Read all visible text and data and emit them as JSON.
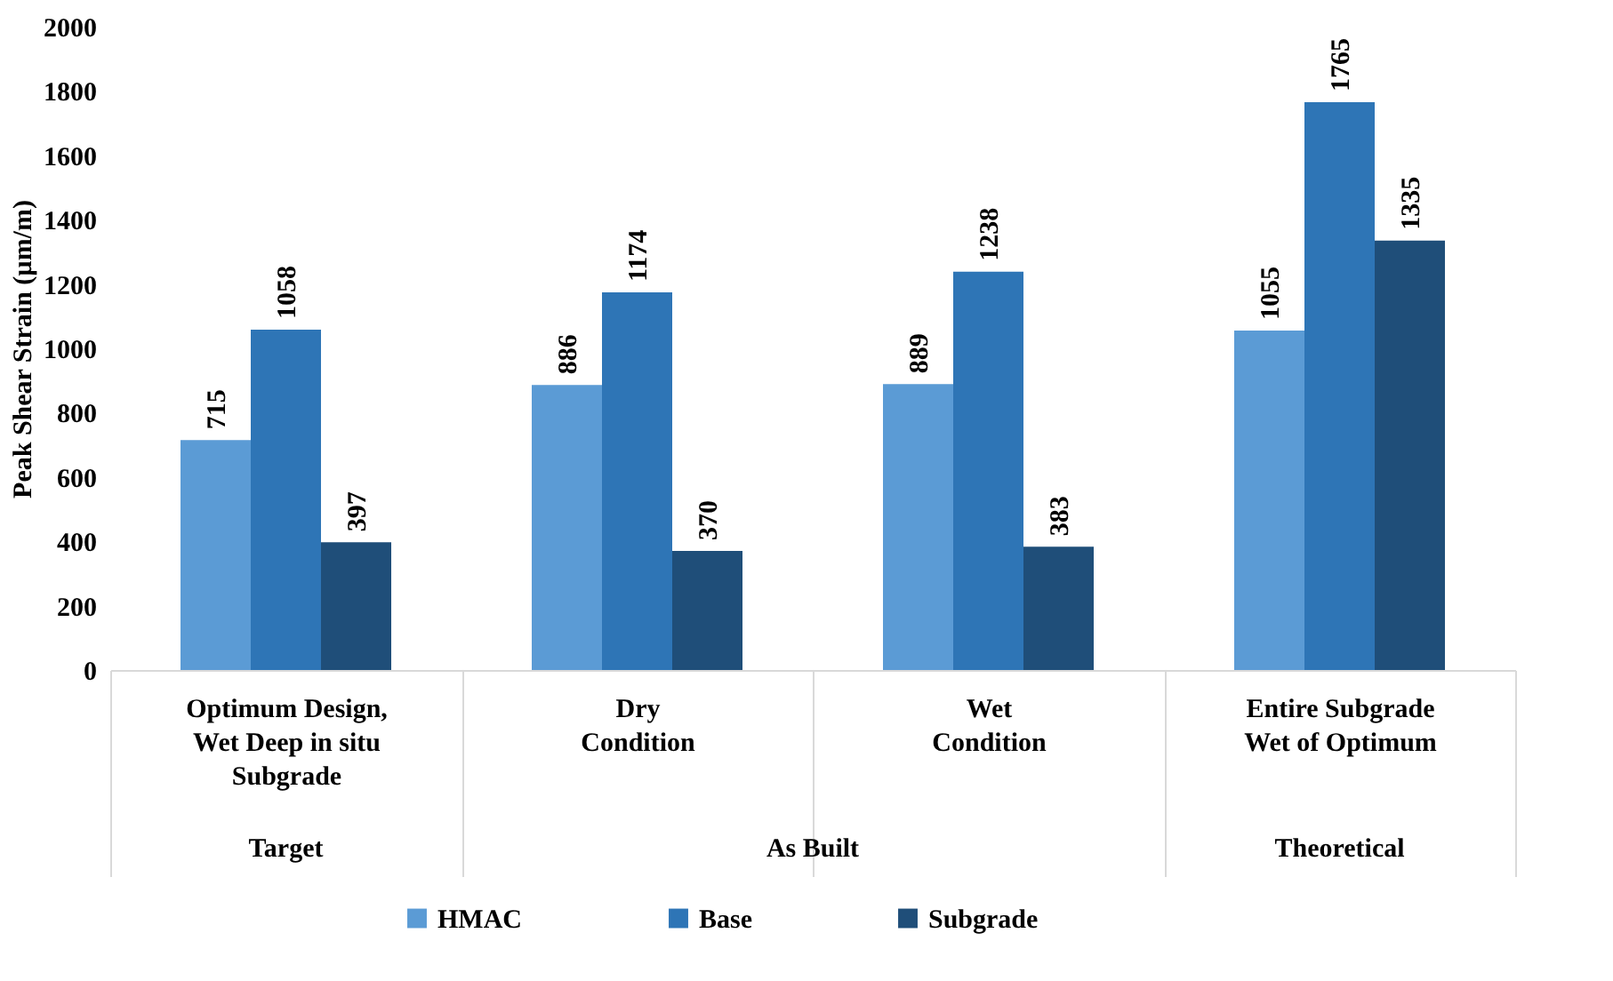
{
  "chart_data": {
    "type": "bar",
    "categories": [
      "Optimum Design,\nWet Deep in situ\nSubgrade",
      "Dry\nCondition",
      "Wet\nCondition",
      "Entire Subgrade\nWet of Optimum"
    ],
    "series": [
      {
        "name": "HMAC",
        "color": "#5b9bd5",
        "values": [
          715,
          886,
          889,
          1055
        ]
      },
      {
        "name": "Base",
        "color": "#2e75b6",
        "values": [
          1058,
          1174,
          1238,
          1765
        ]
      },
      {
        "name": "Subgrade",
        "color": "#1f4e79",
        "values": [
          397,
          370,
          383,
          1335
        ]
      }
    ],
    "ylabel": "Peak Shear Strain (µm/m)",
    "ylim": [
      0,
      2000
    ],
    "yticks": [
      0,
      200,
      400,
      600,
      800,
      1000,
      1200,
      1400,
      1600,
      1800,
      2000
    ],
    "annotations": [
      "Target",
      "As Built",
      "Theoretical"
    ],
    "data_labels": true,
    "grid": false,
    "legend": "bottom"
  }
}
